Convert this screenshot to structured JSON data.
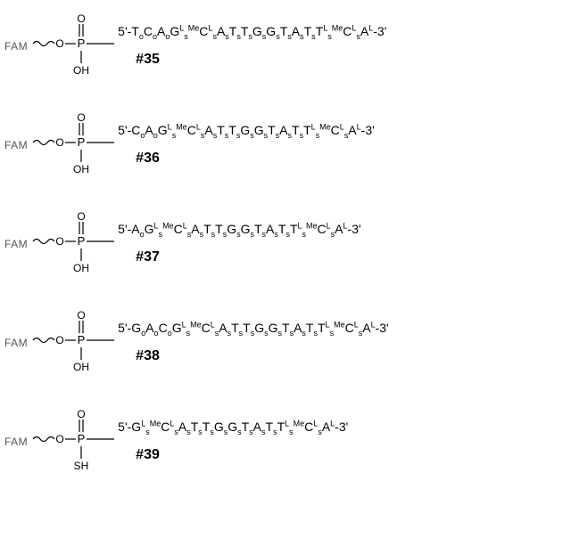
{
  "background_color": "#ffffff",
  "text_color": "#000000",
  "fam_color": "#555555",
  "font_family": "Arial, Helvetica, sans-serif",
  "entries": [
    {
      "id": "#35",
      "fam": "FAM",
      "phosphate_bottom": "OH",
      "seq_tokens": [
        {
          "t": "5'-T",
          "sub": "o"
        },
        {
          "t": "C",
          "sub": "o"
        },
        {
          "t": "A",
          "sub": "o"
        },
        {
          "t": "G",
          "sup": "L",
          "sub": "s"
        },
        {
          "t": "",
          "sup": "Me"
        },
        {
          "t": "C",
          "sup": "L",
          "sub": "s"
        },
        {
          "t": "A",
          "sub": "s"
        },
        {
          "t": "T",
          "sub": "s"
        },
        {
          "t": "T",
          "sub": "s"
        },
        {
          "t": "G",
          "sub": "s"
        },
        {
          "t": "G",
          "sub": "s"
        },
        {
          "t": "T",
          "sub": "s"
        },
        {
          "t": "A",
          "sub": "s"
        },
        {
          "t": "T",
          "sub": "s"
        },
        {
          "t": "T",
          "sup": "L",
          "sub": "s"
        },
        {
          "t": "",
          "sup": "Me"
        },
        {
          "t": "C",
          "sup": "L",
          "sub": "s"
        },
        {
          "t": "A",
          "sup": "L"
        },
        {
          "t": "-3'"
        }
      ]
    },
    {
      "id": "#36",
      "fam": "FAM",
      "phosphate_bottom": "OH",
      "seq_tokens": [
        {
          "t": "5'-C",
          "sub": "o"
        },
        {
          "t": "A",
          "sub": "o"
        },
        {
          "t": "G",
          "sup": "L",
          "sub": "s"
        },
        {
          "t": "",
          "sup": "Me"
        },
        {
          "t": "C",
          "sup": "L",
          "sub": "s"
        },
        {
          "t": "A",
          "sub": "s"
        },
        {
          "t": "T",
          "sub": "s"
        },
        {
          "t": "T",
          "sub": "s"
        },
        {
          "t": "G",
          "sub": "s"
        },
        {
          "t": "G",
          "sub": "s"
        },
        {
          "t": "T",
          "sub": "s"
        },
        {
          "t": "A",
          "sub": "s"
        },
        {
          "t": "T",
          "sub": "s"
        },
        {
          "t": "T",
          "sup": "L",
          "sub": "s"
        },
        {
          "t": "",
          "sup": "Me"
        },
        {
          "t": "C",
          "sup": "L",
          "sub": "s"
        },
        {
          "t": "A",
          "sup": "L"
        },
        {
          "t": "-3'"
        }
      ]
    },
    {
      "id": "#37",
      "fam": "FAM",
      "phosphate_bottom": "OH",
      "seq_tokens": [
        {
          "t": "5'-A",
          "sub": "o"
        },
        {
          "t": "G",
          "sup": "L",
          "sub": "s"
        },
        {
          "t": "",
          "sup": "Me"
        },
        {
          "t": "C",
          "sup": "L",
          "sub": "s"
        },
        {
          "t": "A",
          "sub": "s"
        },
        {
          "t": "T",
          "sub": "s"
        },
        {
          "t": "T",
          "sub": "s"
        },
        {
          "t": "G",
          "sub": "s"
        },
        {
          "t": "G",
          "sub": "s"
        },
        {
          "t": "T",
          "sub": "s"
        },
        {
          "t": "A",
          "sub": "s"
        },
        {
          "t": "T",
          "sub": "s"
        },
        {
          "t": "T",
          "sup": "L",
          "sub": "s"
        },
        {
          "t": "",
          "sup": "Me"
        },
        {
          "t": "C",
          "sup": "L",
          "sub": "s"
        },
        {
          "t": "A",
          "sup": "L"
        },
        {
          "t": "-3'"
        }
      ]
    },
    {
      "id": "#38",
      "fam": "FAM",
      "phosphate_bottom": "OH",
      "seq_tokens": [
        {
          "t": "5'-G",
          "sub": "o"
        },
        {
          "t": "A",
          "sub": "o"
        },
        {
          "t": "C",
          "sub": "o"
        },
        {
          "t": "G",
          "sup": "L",
          "sub": "s"
        },
        {
          "t": "",
          "sup": "Me"
        },
        {
          "t": "C",
          "sup": "L",
          "sub": "s"
        },
        {
          "t": "A",
          "sub": "s"
        },
        {
          "t": "T",
          "sub": "s"
        },
        {
          "t": "T",
          "sub": "s"
        },
        {
          "t": "G",
          "sub": "s"
        },
        {
          "t": "G",
          "sub": "s"
        },
        {
          "t": "T",
          "sub": "s"
        },
        {
          "t": "A",
          "sub": "s"
        },
        {
          "t": "T",
          "sub": "s"
        },
        {
          "t": "T",
          "sup": "L",
          "sub": "s"
        },
        {
          "t": "",
          "sup": "Me"
        },
        {
          "t": "C",
          "sup": "L",
          "sub": "s"
        },
        {
          "t": "A",
          "sup": "L"
        },
        {
          "t": "-3'"
        }
      ]
    },
    {
      "id": "#39",
      "fam": "FAM",
      "phosphate_bottom": "SH",
      "seq_tokens": [
        {
          "t": "5'-G",
          "sup": "L",
          "sub": "s"
        },
        {
          "t": "",
          "sup": "Me"
        },
        {
          "t": "C",
          "sup": "L",
          "sub": "s"
        },
        {
          "t": "A",
          "sub": "s"
        },
        {
          "t": "T",
          "sub": "s"
        },
        {
          "t": "T",
          "sub": "s"
        },
        {
          "t": "G",
          "sub": "s"
        },
        {
          "t": "G",
          "sub": "s"
        },
        {
          "t": "T",
          "sub": "s"
        },
        {
          "t": "A",
          "sub": "s"
        },
        {
          "t": "T",
          "sub": "s"
        },
        {
          "t": "T",
          "sup": "L",
          "sub": "s"
        },
        {
          "t": "",
          "sup": "Me"
        },
        {
          "t": "C",
          "sup": "L",
          "sub": "s"
        },
        {
          "t": "A",
          "sup": "L"
        },
        {
          "t": "-3'"
        }
      ]
    }
  ],
  "phosphate_diagram": {
    "width": 90,
    "height": 80,
    "stroke": "#000000",
    "stroke_width": 1.2,
    "wavy_bond": "FAM linker",
    "top_atom": "O",
    "left_atom": "O",
    "center_atom": "P"
  }
}
